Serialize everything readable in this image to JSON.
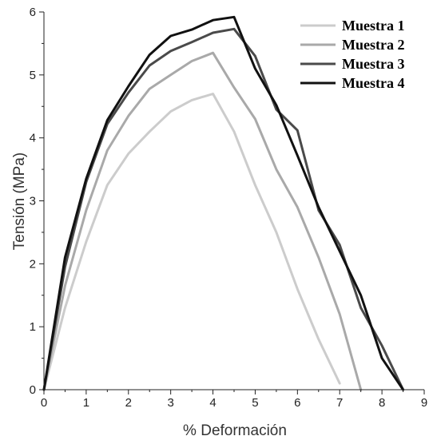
{
  "chart_data": {
    "type": "line",
    "xlabel": "% Deformación",
    "ylabel": "Tensión (MPa)",
    "xlim": [
      0,
      9
    ],
    "ylim": [
      0,
      6
    ],
    "xticks": [
      "0",
      "1",
      "2",
      "3",
      "4",
      "5",
      "6",
      "7",
      "8",
      "9"
    ],
    "yticks": [
      "0",
      "1",
      "2",
      "3",
      "4",
      "5",
      "6"
    ],
    "grid": false,
    "legend_position": "top-right",
    "series": [
      {
        "name": "Muestra 1",
        "color": "#cccccc",
        "x": [
          0,
          0.5,
          1,
          1.5,
          2,
          2.5,
          3,
          3.5,
          4,
          4.5,
          5,
          5.5,
          6,
          6.5,
          7
        ],
        "y": [
          0,
          1.3,
          2.35,
          3.25,
          3.75,
          4.1,
          4.42,
          4.6,
          4.7,
          4.1,
          3.25,
          2.5,
          1.6,
          0.8,
          0.1
        ]
      },
      {
        "name": "Muestra 2",
        "color": "#a9a9a9",
        "x": [
          0,
          0.5,
          1,
          1.5,
          2,
          2.5,
          3,
          3.5,
          4,
          4.5,
          5,
          5.5,
          6,
          6.5,
          7,
          7.5
        ],
        "y": [
          0,
          1.65,
          2.85,
          3.8,
          4.35,
          4.78,
          5,
          5.22,
          5.35,
          4.8,
          4.3,
          3.5,
          2.9,
          2.1,
          1.2,
          0
        ]
      },
      {
        "name": "Muestra 3",
        "color": "#4a4a4a",
        "x": [
          0,
          0.5,
          1,
          1.5,
          2,
          2.5,
          3,
          3.5,
          4,
          4.5,
          5,
          5.5,
          6,
          6.5,
          7,
          7.5,
          8,
          8.5
        ],
        "y": [
          0,
          1.95,
          3.3,
          4.22,
          4.72,
          5.15,
          5.38,
          5.52,
          5.67,
          5.73,
          5.3,
          4.45,
          4.12,
          2.85,
          2.3,
          1.3,
          0.7,
          0
        ]
      },
      {
        "name": "Muestra 4",
        "color": "#111111",
        "x": [
          0,
          0.5,
          1,
          1.5,
          2,
          2.5,
          3,
          3.5,
          4,
          4.5,
          5,
          5.5,
          6,
          6.5,
          7,
          7.5,
          8,
          8.5
        ],
        "y": [
          0,
          2.1,
          3.35,
          4.28,
          4.82,
          5.32,
          5.62,
          5.72,
          5.87,
          5.92,
          5.1,
          4.52,
          3.72,
          2.9,
          2.2,
          1.5,
          0.5,
          0
        ]
      }
    ]
  }
}
